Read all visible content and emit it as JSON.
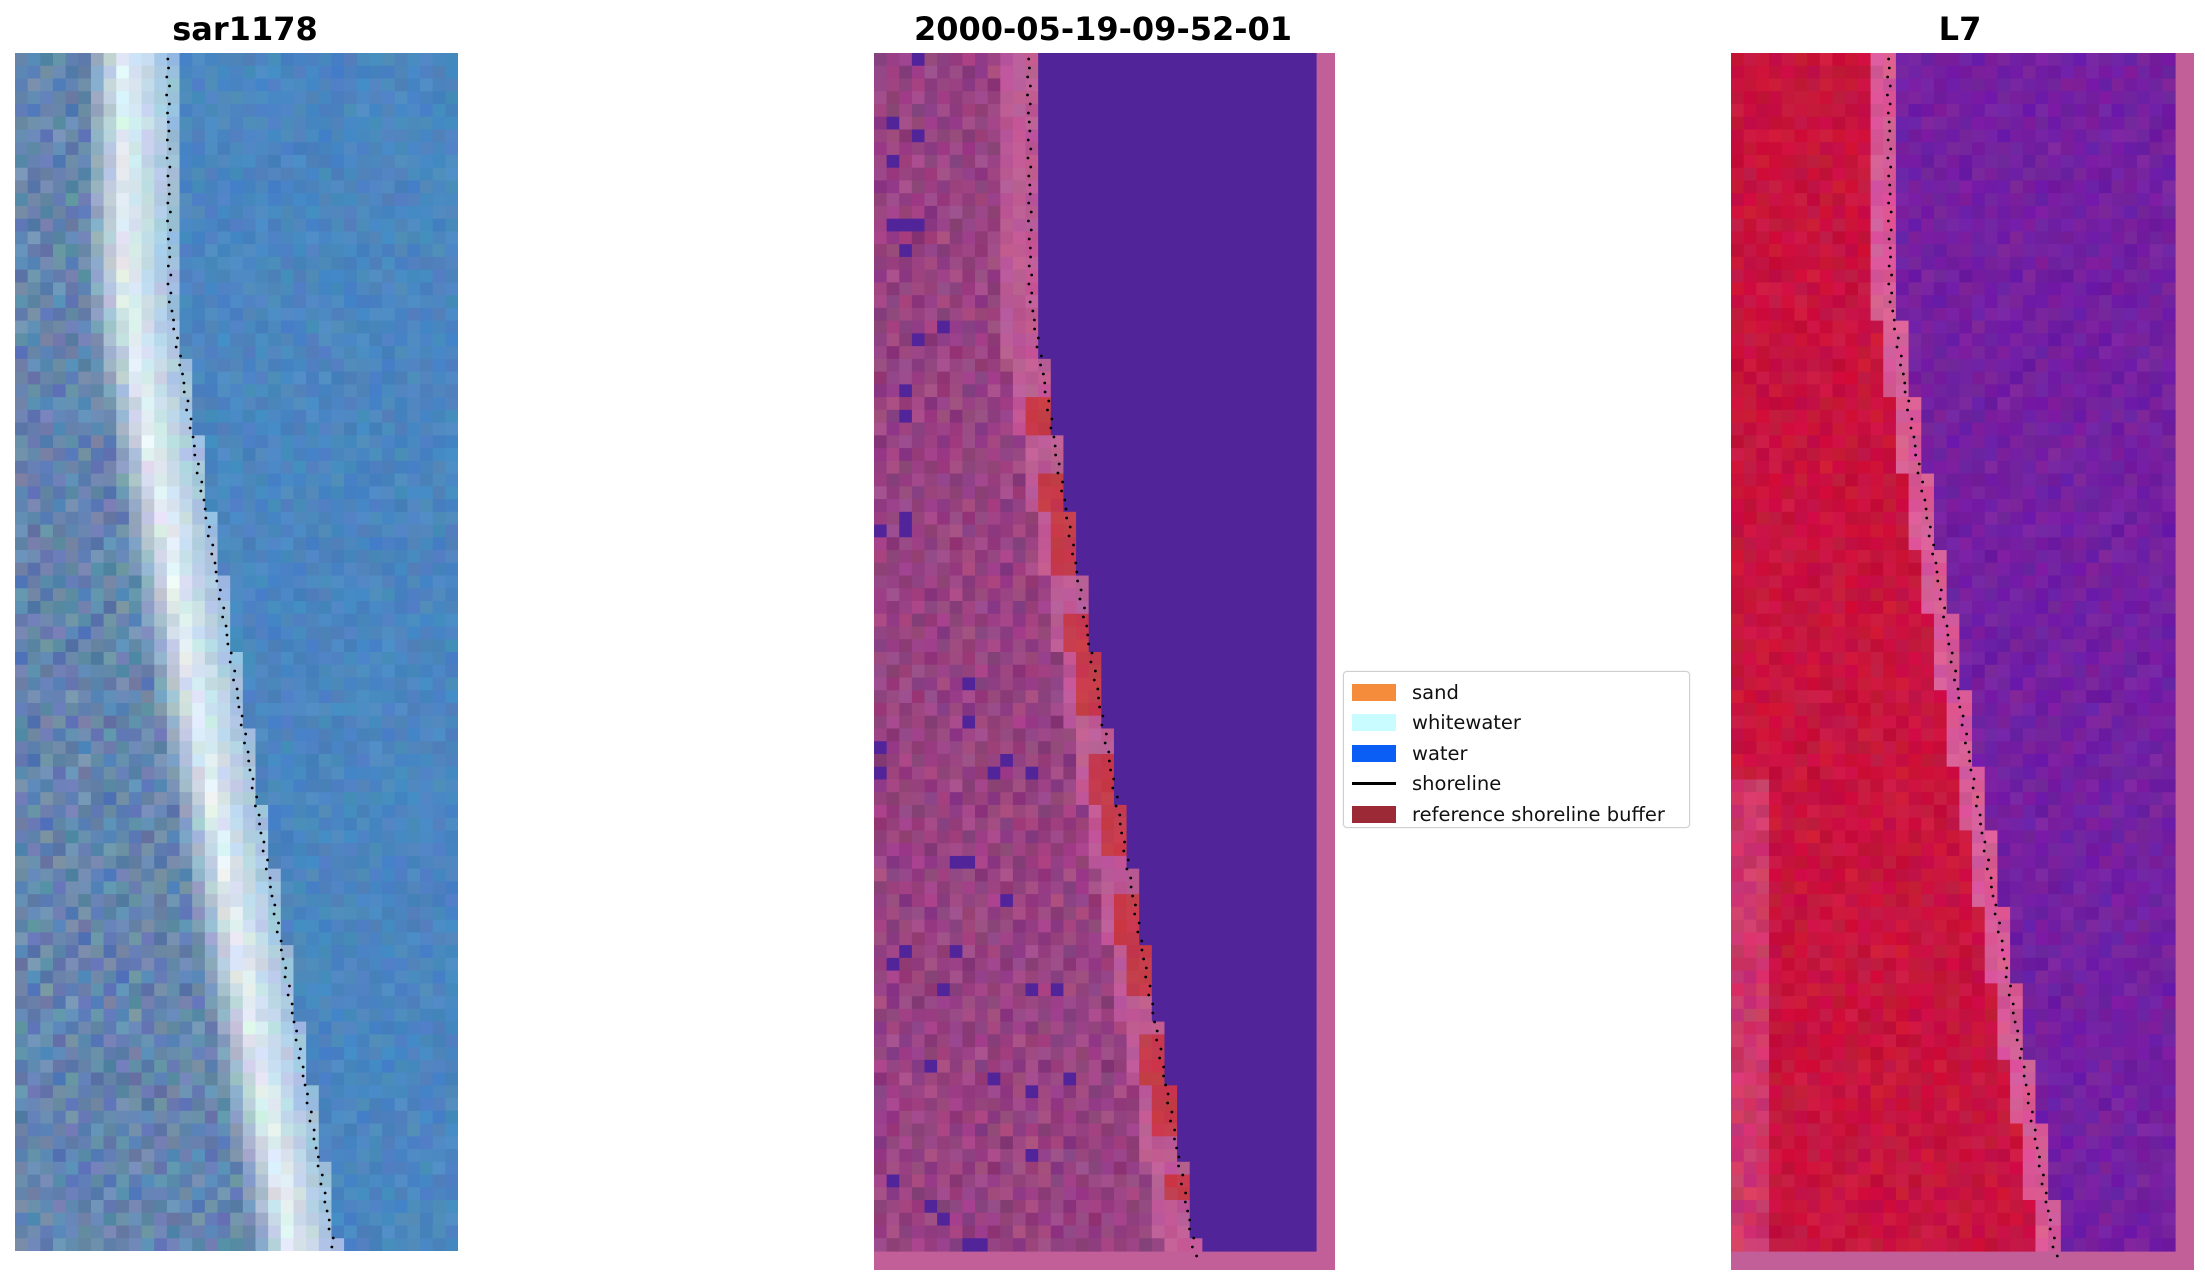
{
  "panels": [
    {
      "title": "sar1178",
      "kind": "rgb"
    },
    {
      "title": "2000-05-19-09-52-01",
      "kind": "classified"
    },
    {
      "title": "L7",
      "kind": "falsecolor"
    }
  ],
  "legend": {
    "items": [
      {
        "label": "sand",
        "color": "#f58c3c",
        "type": "patch"
      },
      {
        "label": "whitewater",
        "color": "#c8fcff",
        "type": "patch"
      },
      {
        "label": "water",
        "color": "#0a5ef5",
        "type": "patch"
      },
      {
        "label": "shoreline",
        "color": "#000000",
        "type": "line"
      },
      {
        "label": "reference shoreline buffer",
        "color": "#9b2a36",
        "type": "patch"
      }
    ]
  },
  "colors": {
    "rgb_water": "#4b86c0",
    "rgb_surf": "#e8f2f5",
    "classified_water": "#52249a",
    "classified_land": "#8a3a7a",
    "classified_buffer": "#c63a4a",
    "classified_border": "#c25f98",
    "false_land": "#c8143e",
    "false_water": "#7a229e"
  }
}
